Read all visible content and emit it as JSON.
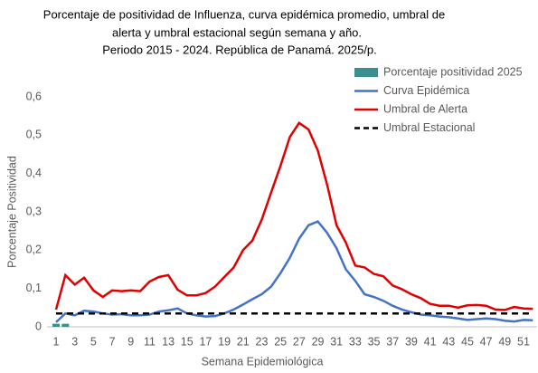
{
  "chart_data": {
    "type": "line",
    "title": [
      "Porcentaje de positividad de Influenza, curva epidémica promedio, umbral de",
      "alerta  y umbral estacional según semana y año.",
      "Periodo 2015 - 2024.  República de Panamá. 2025/p."
    ],
    "x_label": "Semana Epidemiológica",
    "y_label": "Porcentaje Positividad",
    "categories": [
      "1",
      null,
      "3",
      null,
      "5",
      null,
      "7",
      null,
      "9",
      null,
      "11",
      null,
      "13",
      null,
      "15",
      null,
      "17",
      null,
      "19",
      null,
      "21",
      null,
      "23",
      null,
      "25",
      null,
      "27",
      null,
      "29",
      null,
      "31",
      null,
      "33",
      null,
      "35",
      null,
      "37",
      null,
      "39",
      null,
      "41",
      null,
      "43",
      null,
      "45",
      null,
      "47",
      null,
      "49",
      null,
      "51",
      null
    ],
    "ylim": [
      0,
      0.6
    ],
    "yticks": [
      0,
      {
        "value": 0.1,
        "label": "0,1"
      },
      {
        "value": 0.2,
        "label": "0,2"
      },
      {
        "value": 0.3,
        "label": "0,3"
      },
      {
        "value": 0.4,
        "label": "0,4"
      },
      {
        "value": 0.5,
        "label": "0,5"
      },
      {
        "value": 0.6,
        "label": "0,6"
      }
    ],
    "grid": false,
    "legend": "top-right",
    "series": [
      {
        "name": "Porcentaje positividad 2025",
        "type": "bar",
        "color": "#3a8f8f",
        "values": [
          0.008,
          0.008,
          null,
          null,
          null,
          null,
          null,
          null,
          null,
          null,
          null,
          null,
          null,
          null,
          null,
          null,
          null,
          null,
          null,
          null,
          null,
          null,
          null,
          null,
          null,
          null,
          null,
          null,
          null,
          null,
          null,
          null,
          null,
          null,
          null,
          null,
          null,
          null,
          null,
          null,
          null,
          null,
          null,
          null,
          null,
          null,
          null,
          null,
          null,
          null,
          null,
          null
        ]
      },
      {
        "name": "Curva Epidémica",
        "type": "line",
        "color": "#4472c4",
        "line_style": "solid",
        "values": [
          0.012,
          0.035,
          0.03,
          0.042,
          0.04,
          0.035,
          0.032,
          0.033,
          0.03,
          0.03,
          0.032,
          0.04,
          0.043,
          0.048,
          0.035,
          0.03,
          0.027,
          0.028,
          0.035,
          0.045,
          0.058,
          0.072,
          0.085,
          0.105,
          0.14,
          0.18,
          0.23,
          0.265,
          0.275,
          0.245,
          0.205,
          0.15,
          0.12,
          0.085,
          0.078,
          0.068,
          0.055,
          0.045,
          0.038,
          0.032,
          0.03,
          0.027,
          0.025,
          0.022,
          0.018,
          0.02,
          0.022,
          0.02,
          0.016,
          0.014,
          0.018,
          0.017
        ]
      },
      {
        "name": "Umbral de Alerta",
        "type": "line",
        "color": "#e00000",
        "line_style": "solid",
        "values": [
          0.045,
          0.135,
          0.11,
          0.128,
          0.095,
          0.078,
          0.095,
          0.093,
          0.095,
          0.093,
          0.118,
          0.13,
          0.135,
          0.097,
          0.082,
          0.082,
          0.088,
          0.105,
          0.13,
          0.155,
          0.2,
          0.225,
          0.28,
          0.35,
          0.42,
          0.495,
          0.532,
          0.515,
          0.46,
          0.37,
          0.265,
          0.22,
          0.16,
          0.155,
          0.138,
          0.132,
          0.108,
          0.098,
          0.085,
          0.075,
          0.06,
          0.055,
          0.055,
          0.05,
          0.056,
          0.057,
          0.055,
          0.045,
          0.044,
          0.052,
          0.048,
          0.047
        ]
      },
      {
        "name": "Umbral Estacional",
        "type": "line",
        "color": "#000000",
        "line_style": "dashed",
        "values": [
          0.035,
          0.035,
          0.035,
          0.035,
          0.035,
          0.035,
          0.035,
          0.035,
          0.035,
          0.035,
          0.035,
          0.035,
          0.035,
          0.035,
          0.035,
          0.035,
          0.035,
          0.035,
          0.035,
          0.035,
          0.035,
          0.035,
          0.035,
          0.035,
          0.035,
          0.035,
          0.035,
          0.035,
          0.035,
          0.035,
          0.035,
          0.035,
          0.035,
          0.035,
          0.035,
          0.035,
          0.035,
          0.035,
          0.035,
          0.035,
          0.035,
          0.035,
          0.035,
          0.035,
          0.035,
          0.035,
          0.035,
          0.035,
          0.035,
          0.035,
          0.035,
          0.035
        ]
      }
    ]
  }
}
